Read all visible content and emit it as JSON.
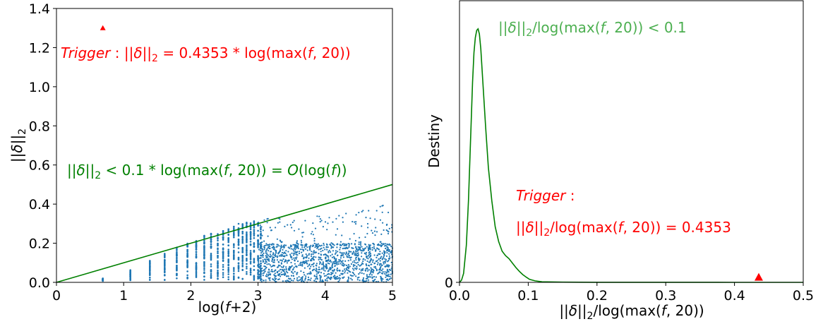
{
  "chart_data": [
    {
      "type": "scatter",
      "xlim": [
        0,
        5
      ],
      "ylim": [
        0,
        1.4
      ],
      "xticks": [
        "0",
        "1",
        "2",
        "3",
        "4",
        "5"
      ],
      "yticks": [
        "0.0",
        "0.2",
        "0.4",
        "0.6",
        "0.8",
        "1.0",
        "1.2",
        "1.4"
      ],
      "xlabel": "log(f+2)",
      "ylabel": "||δ||₂",
      "grid": false,
      "colors": {
        "points": "#1f77b4",
        "bound": "#008000",
        "trigger": "#ff0000"
      },
      "bound_line": {
        "x": [
          0,
          5
        ],
        "y": [
          0,
          0.5
        ]
      },
      "trigger_point": {
        "x": 0.69,
        "y": 1.3
      },
      "point_columns": [
        {
          "x": 0.69,
          "lo": 0.005,
          "hi": 0.02
        },
        {
          "x": 1.1,
          "lo": 0.01,
          "hi": 0.065
        },
        {
          "x": 1.39,
          "lo": 0.01,
          "hi": 0.11
        },
        {
          "x": 1.61,
          "lo": 0.01,
          "hi": 0.15
        },
        {
          "x": 1.79,
          "lo": 0.01,
          "hi": 0.18
        },
        {
          "x": 1.95,
          "lo": 0.01,
          "hi": 0.2
        },
        {
          "x": 2.08,
          "lo": 0.01,
          "hi": 0.22
        },
        {
          "x": 2.2,
          "lo": 0.01,
          "hi": 0.24
        },
        {
          "x": 2.3,
          "lo": 0.01,
          "hi": 0.25
        },
        {
          "x": 2.4,
          "lo": 0.01,
          "hi": 0.26
        },
        {
          "x": 2.48,
          "lo": 0.01,
          "hi": 0.27
        },
        {
          "x": 2.56,
          "lo": 0.01,
          "hi": 0.28
        },
        {
          "x": 2.64,
          "lo": 0.01,
          "hi": 0.29
        },
        {
          "x": 2.71,
          "lo": 0.01,
          "hi": 0.3
        },
        {
          "x": 2.77,
          "lo": 0.01,
          "hi": 0.3
        },
        {
          "x": 2.83,
          "lo": 0.01,
          "hi": 0.31
        },
        {
          "x": 2.89,
          "lo": 0.01,
          "hi": 0.31
        },
        {
          "x": 2.94,
          "lo": 0.01,
          "hi": 0.32
        },
        {
          "x": 3.0,
          "lo": 0.01,
          "hi": 0.32
        },
        {
          "x": 3.04,
          "lo": 0.01,
          "hi": 0.31
        }
      ],
      "point_cloud": {
        "x_range": [
          3.0,
          5.0
        ],
        "y_low": 0.0,
        "y_high_start": 0.32,
        "y_high_end": 0.4,
        "dense_top": 0.2
      },
      "annotations": [
        {
          "label": "trigger_equation",
          "text": "Trigger: ||δ||₂ = 0.4353 * log(max(f, 20))",
          "color": "#ff0000"
        },
        {
          "label": "bound_equation",
          "text": "||δ||₂ < 0.1 * log(max(f, 20)) = O(log(f))",
          "color": "#008000"
        }
      ]
    },
    {
      "type": "line",
      "xlim": [
        0,
        0.5
      ],
      "xticks": [
        "0.0",
        "0.1",
        "0.2",
        "0.3",
        "0.4",
        "0.5"
      ],
      "yticks": [
        "0"
      ],
      "xlabel": "||δ||₂/log(max(f, 20))",
      "ylabel": "Destiny",
      "grid": false,
      "colors": {
        "density": "#008000",
        "trigger": "#ff0000"
      },
      "series": [
        {
          "x": [
            0,
            0.003,
            0.006,
            0.01,
            0.013,
            0.016,
            0.019,
            0.021,
            0.023,
            0.025,
            0.027,
            0.029,
            0.031,
            0.034,
            0.038,
            0.042,
            0.047,
            0.052,
            0.057,
            0.062,
            0.067,
            0.072,
            0.077,
            0.082,
            0.087,
            0.092,
            0.097,
            0.102,
            0.11,
            0.12,
            0.15,
            0.2,
            0.3,
            0.4,
            0.5
          ],
          "y": [
            0,
            0.3,
            1.2,
            5,
            11,
            19,
            27,
            31,
            33,
            34,
            34.2,
            33.5,
            31.5,
            27,
            21,
            15.5,
            11,
            7.5,
            5.5,
            4.2,
            3.6,
            3.2,
            2.6,
            2,
            1.5,
            1.05,
            0.7,
            0.4,
            0.2,
            0.08,
            0.03,
            0.01,
            0.005,
            0.003,
            0.002
          ]
        }
      ],
      "trigger_point": {
        "x": 0.4353,
        "y": 0.7
      },
      "annotations": [
        {
          "label": "density_label",
          "text": "||δ||₂/log(max(f, 20)) < 0.1",
          "color": "#008000"
        },
        {
          "label": "trigger_label",
          "text": "Trigger:",
          "color": "#ff0000"
        },
        {
          "label": "trigger_value",
          "text": "||δ||₂/log(max(f, 20)) = 0.4353",
          "color": "#ff0000"
        }
      ]
    }
  ]
}
